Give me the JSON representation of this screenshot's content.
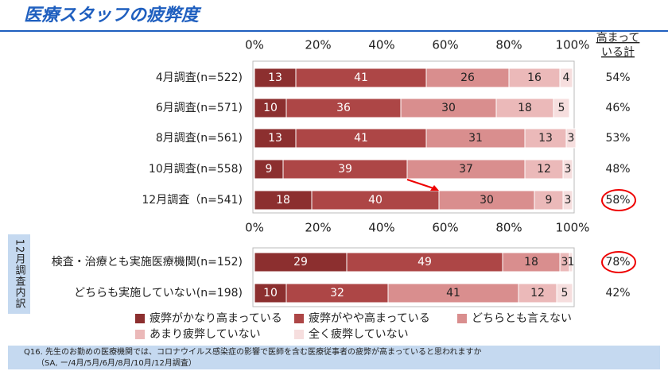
{
  "chart_data": {
    "type": "stacked_bar",
    "title": "医療スタッフの疲弊度",
    "total_header": [
      "高まって",
      "いる計"
    ],
    "xlim": [
      0,
      100
    ],
    "xticks": [
      {
        "value": 0,
        "label": "0%"
      },
      {
        "value": 20,
        "label": "20%"
      },
      {
        "value": 40,
        "label": "40%"
      },
      {
        "value": 60,
        "label": "60%"
      },
      {
        "value": 80,
        "label": "80%"
      },
      {
        "value": 100,
        "label": "100%"
      }
    ],
    "series": [
      {
        "name": "疲弊がかなり高まっている",
        "color": "#8c2f2f"
      },
      {
        "name": "疲弊がやや高まっている",
        "color": "#ad4646"
      },
      {
        "name": "どちらとも言えない",
        "color": "#d98e8e"
      },
      {
        "name": "あまり疲弊していない",
        "color": "#ebb9b9"
      },
      {
        "name": "全く疲弊していない",
        "color": "#f6dede"
      }
    ],
    "panels": [
      {
        "label": null,
        "categories": [
          "4月調査(n=522)",
          "6月調査(n=571)",
          "8月調査(n=561)",
          "10月調査(n=558)",
          "12月調査（n=541)"
        ],
        "values": [
          [
            13,
            41,
            26,
            16,
            4
          ],
          [
            10,
            36,
            30,
            18,
            5
          ],
          [
            13,
            41,
            31,
            13,
            3
          ],
          [
            9,
            39,
            37,
            12,
            3
          ],
          [
            18,
            40,
            30,
            9,
            3
          ]
        ],
        "totals": [
          54,
          46,
          53,
          48,
          58
        ],
        "total_labels": [
          "54%",
          "46%",
          "53%",
          "48%",
          "58%"
        ],
        "circled": [
          4
        ]
      },
      {
        "label": "12月調査内訳",
        "categories": [
          "検査・治療とも実施医療機関(n=152)",
          "どちらも実施していない(n=198)"
        ],
        "values": [
          [
            29,
            49,
            18,
            3,
            1
          ],
          [
            10,
            32,
            41,
            12,
            5
          ]
        ],
        "totals": [
          78,
          42
        ],
        "total_labels": [
          "78%",
          "42%"
        ],
        "circled": [
          0
        ]
      }
    ],
    "footnote": [
      "Q16. 先生のお勤めの医療機関では、コロナウイルス感染症の影響で医師を含む医療従事者の疲弊が高まっていると思われますか",
      "（SA, ー/4月/5月/6月/8月/10月/12月調査）"
    ]
  }
}
